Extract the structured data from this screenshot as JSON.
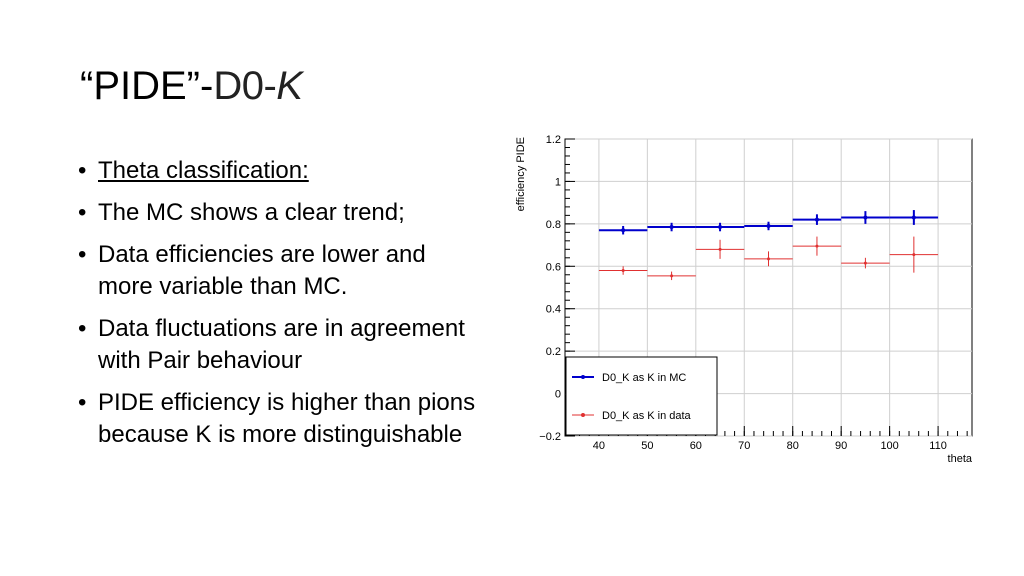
{
  "slide": {
    "title_lead": "“PIDE”-",
    "title_mid": "D0-",
    "title_tail": "K"
  },
  "bullets": [
    {
      "text": "Theta classification:",
      "underline": true
    },
    {
      "text": "The MC shows a clear trend;"
    },
    {
      "text": "Data efficiencies are lower and more variable than MC."
    },
    {
      "text": "Data fluctuations are in agreement with Pair behaviour"
    },
    {
      "text": "PIDE efficiency is higher than pions because K is more distinguishable"
    }
  ],
  "chart_data": {
    "type": "scatter",
    "title": "",
    "xlabel": "theta",
    "ylabel": "efficiency PIDE",
    "xlim": [
      33,
      117
    ],
    "ylim": [
      -0.2,
      1.2
    ],
    "xticks": [
      40,
      50,
      60,
      70,
      80,
      90,
      100,
      110
    ],
    "yticks": [
      -0.2,
      0,
      0.2,
      0.4,
      0.6,
      0.8,
      1,
      1.2
    ],
    "grid": true,
    "legend_position": "bottom-left",
    "series": [
      {
        "name": "D0_K as K in MC",
        "color": "#0000cc",
        "points": [
          {
            "x": 45,
            "xerr": 5,
            "y": 0.77,
            "yerr": 0.02
          },
          {
            "x": 55,
            "xerr": 5,
            "y": 0.785,
            "yerr": 0.02
          },
          {
            "x": 65,
            "xerr": 5,
            "y": 0.785,
            "yerr": 0.02
          },
          {
            "x": 75,
            "xerr": 5,
            "y": 0.79,
            "yerr": 0.02
          },
          {
            "x": 85,
            "xerr": 5,
            "y": 0.82,
            "yerr": 0.025
          },
          {
            "x": 95,
            "xerr": 5,
            "y": 0.83,
            "yerr": 0.03
          },
          {
            "x": 105,
            "xerr": 5,
            "y": 0.83,
            "yerr": 0.035
          }
        ]
      },
      {
        "name": "D0_K as K in data",
        "color": "#e03030",
        "points": [
          {
            "x": 45,
            "xerr": 5,
            "y": 0.58,
            "yerr": 0.02
          },
          {
            "x": 55,
            "xerr": 5,
            "y": 0.555,
            "yerr": 0.02
          },
          {
            "x": 65,
            "xerr": 5,
            "y": 0.68,
            "yerr": 0.045
          },
          {
            "x": 75,
            "xerr": 5,
            "y": 0.635,
            "yerr": 0.035
          },
          {
            "x": 85,
            "xerr": 5,
            "y": 0.695,
            "yerr": 0.045
          },
          {
            "x": 95,
            "xerr": 5,
            "y": 0.615,
            "yerr": 0.025
          },
          {
            "x": 105,
            "xerr": 5,
            "y": 0.655,
            "yerr": 0.085
          }
        ]
      }
    ]
  }
}
